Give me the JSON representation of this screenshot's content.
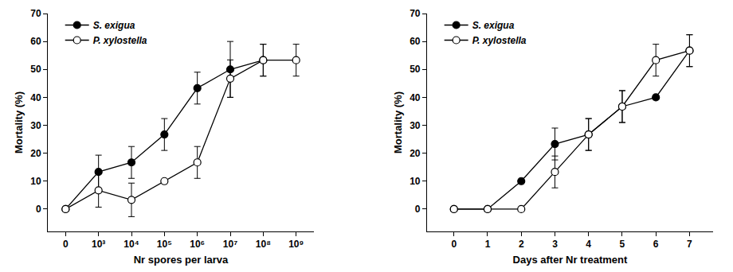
{
  "chart_data": [
    {
      "type": "line",
      "x_label": "Nr spores per larva",
      "y_label": "Mortality (%)",
      "categories": [
        "0",
        "10³",
        "10⁴",
        "10⁵",
        "10⁶",
        "10⁷",
        "10⁸",
        "10⁹"
      ],
      "series": [
        {
          "name": "S. exigua",
          "color": "#000000",
          "marker": "filled",
          "values": [
            0,
            13.3,
            16.7,
            26.7,
            43.3,
            50,
            53.3,
            null
          ],
          "errors": [
            null,
            6,
            5.7,
            5.7,
            5.7,
            10,
            5.7,
            null
          ]
        },
        {
          "name": "P. xylostella",
          "color": "#000000",
          "marker": "open",
          "values": [
            0,
            6.7,
            3.3,
            10,
            16.7,
            46.7,
            53.3,
            53.3
          ],
          "errors": [
            null,
            6,
            6,
            null,
            5.7,
            6.7,
            5.7,
            5.7
          ]
        }
      ],
      "ylim": [
        -8,
        70
      ],
      "yticks": [
        0,
        10,
        20,
        30,
        40,
        50,
        60,
        70
      ],
      "grid": false,
      "legend": "upper left"
    },
    {
      "type": "line",
      "x_label": "Days after Nr treatment",
      "y_label": "Mortality (%)",
      "x": [
        0,
        1,
        2,
        3,
        4,
        5,
        6,
        7
      ],
      "series": [
        {
          "name": "S. exigua",
          "color": "#000000",
          "marker": "filled",
          "values": [
            0,
            0,
            10,
            23.3,
            26.7,
            36.7,
            40,
            56.7
          ],
          "errors": [
            null,
            null,
            null,
            5.7,
            5.7,
            5.7,
            null,
            5.7
          ]
        },
        {
          "name": "P. xylostella",
          "color": "#000000",
          "marker": "open",
          "values": [
            0,
            0,
            0,
            13.3,
            26.7,
            36.7,
            53.3,
            56.7
          ],
          "errors": [
            null,
            null,
            null,
            5.7,
            5.7,
            5.7,
            5.7,
            5.7
          ]
        }
      ],
      "xlim": [
        -0.8,
        7.7
      ],
      "xticks": [
        0,
        1,
        2,
        3,
        4,
        5,
        6,
        7
      ],
      "ylim": [
        -8,
        70
      ],
      "yticks": [
        0,
        10,
        20,
        30,
        40,
        50,
        60,
        70
      ],
      "grid": false,
      "legend": "upper left"
    }
  ]
}
